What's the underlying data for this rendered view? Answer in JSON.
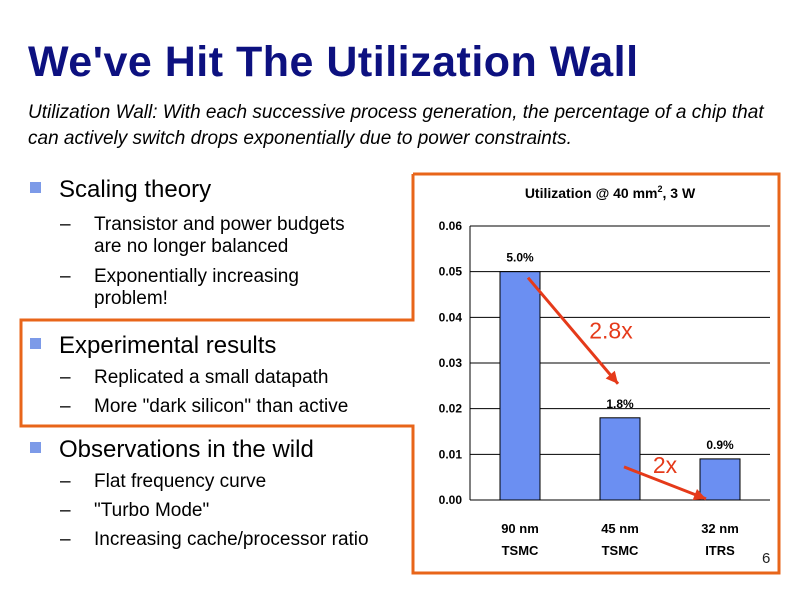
{
  "slide": {
    "title": "We've Hit The Utilization Wall",
    "subtitle": "Utilization Wall: With each successive process generation, the percentage of a chip that can actively switch drops exponentially due to power constraints.",
    "page_number": "6"
  },
  "bullets": [
    {
      "label": "Scaling theory",
      "subitems": [
        {
          "line1": "Transistor and power budgets",
          "line2": "are no longer balanced"
        },
        {
          "line1": "Exponentially increasing",
          "line2": "problem!"
        }
      ]
    },
    {
      "label": "Experimental results",
      "subitems": [
        {
          "line1": "Replicated a small datapath"
        },
        {
          "line1": "More \"dark silicon\" than active"
        }
      ]
    },
    {
      "label": "Observations in the wild",
      "subitems": [
        {
          "line1": "Flat frequency curve"
        },
        {
          "line1": "\"Turbo Mode\""
        },
        {
          "line1": "Increasing cache/processor ratio"
        }
      ]
    }
  ],
  "colors": {
    "title": "#0d1180",
    "bullet_square": "#7c9ae8",
    "highlight_border": "#e8651a",
    "bar_fill": "#6b8ff2",
    "arrow_and_annotation": "#e53a1a"
  },
  "chart_data": {
    "type": "bar",
    "title_main": "Utilization @ 40 mm",
    "title_sup": "2",
    "title_tail": ", 3 W",
    "categories": [
      {
        "line1": "90 nm",
        "line2": "TSMC"
      },
      {
        "line1": "45 nm",
        "line2": "TSMC"
      },
      {
        "line1": "32 nm",
        "line2": "ITRS"
      }
    ],
    "values": [
      0.05,
      0.018,
      0.009
    ],
    "data_labels": [
      "5.0%",
      "1.8%",
      "0.9%"
    ],
    "ylim": [
      0,
      0.06
    ],
    "yticks": [
      "0.00",
      "0.01",
      "0.02",
      "0.03",
      "0.04",
      "0.05",
      "0.06"
    ],
    "grid": true,
    "annotations": [
      {
        "text": "2.8x",
        "from_bar": 0,
        "to_bar": 1
      },
      {
        "text": "2x",
        "from_bar": 1,
        "to_bar": 2
      }
    ]
  }
}
